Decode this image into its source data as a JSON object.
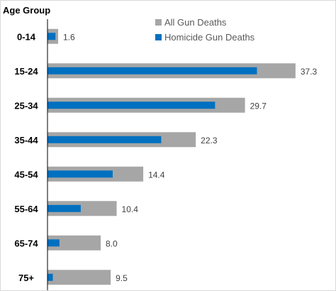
{
  "chart_data": {
    "type": "bar",
    "orientation": "horizontal",
    "y_axis_title": "Age Group",
    "categories": [
      "0-14",
      "15-24",
      "25-34",
      "35-44",
      "45-54",
      "55-64",
      "65-74",
      "75+"
    ],
    "series": [
      {
        "name": "All Gun Deaths",
        "color": "#a6a6a6",
        "values": [
          1.6,
          37.3,
          29.7,
          22.3,
          14.4,
          10.4,
          8.0,
          9.5
        ],
        "value_labels": [
          "1.6",
          "37.3",
          "29.7",
          "22.3",
          "14.4",
          "10.4",
          "8.0",
          "9.5"
        ]
      },
      {
        "name": "Homicide Gun Deaths",
        "color": "#0070c0",
        "values": [
          1.2,
          31.5,
          25.2,
          17.1,
          9.8,
          5.0,
          1.8,
          0.8
        ]
      }
    ],
    "xlim": [
      0,
      40
    ],
    "grid": false,
    "legend_position": "top-right"
  }
}
